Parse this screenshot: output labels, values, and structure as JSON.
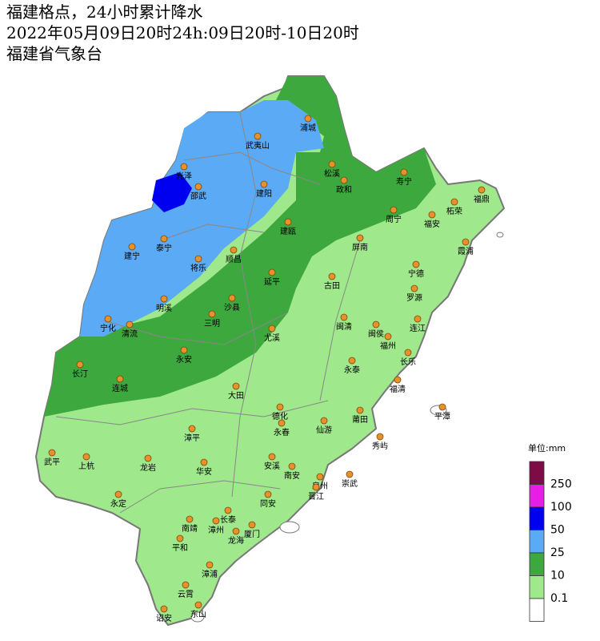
{
  "header": {
    "lines": [
      "福建格点，24小时累计降水",
      "2022年05月09日20时24h:09日20时-10日20时",
      "福建省气象台"
    ]
  },
  "legend": {
    "unit": "单位:mm",
    "ticks": [
      "250",
      "100",
      "50",
      "25",
      "10",
      "0.1"
    ],
    "colors": [
      "#7d0b45",
      "#e61ee6",
      "#0000f0",
      "#5aaaf5",
      "#3da83d",
      "#a0e88c",
      "#ffffff"
    ]
  },
  "cities": [
    "浦城",
    "武夷山",
    "光泽",
    "邵武",
    "建阳",
    "松溪",
    "政和",
    "寿宁",
    "福鼎",
    "柘荣",
    "周宁",
    "福安",
    "建瓯",
    "泰宁",
    "建宁",
    "将乐",
    "顺昌",
    "屏南",
    "霞浦",
    "宁德",
    "延平",
    "古田",
    "罗源",
    "明溪",
    "沙县",
    "三明",
    "宁化",
    "清流",
    "尤溪",
    "闽清",
    "闽侯",
    "连江",
    "福州",
    "长乐",
    "永安",
    "长汀",
    "连城",
    "永泰",
    "福清",
    "大田",
    "德化",
    "莆田",
    "平潭",
    "永春",
    "仙游",
    "漳平",
    "秀屿",
    "武平",
    "上杭",
    "龙岩",
    "华安",
    "安溪",
    "南安",
    "泉州",
    "崇武",
    "晋江",
    "永定",
    "同安",
    "长泰",
    "南靖",
    "漳州",
    "厦门",
    "龙海",
    "平和",
    "漳浦",
    "云霄",
    "诏安",
    "东山"
  ]
}
